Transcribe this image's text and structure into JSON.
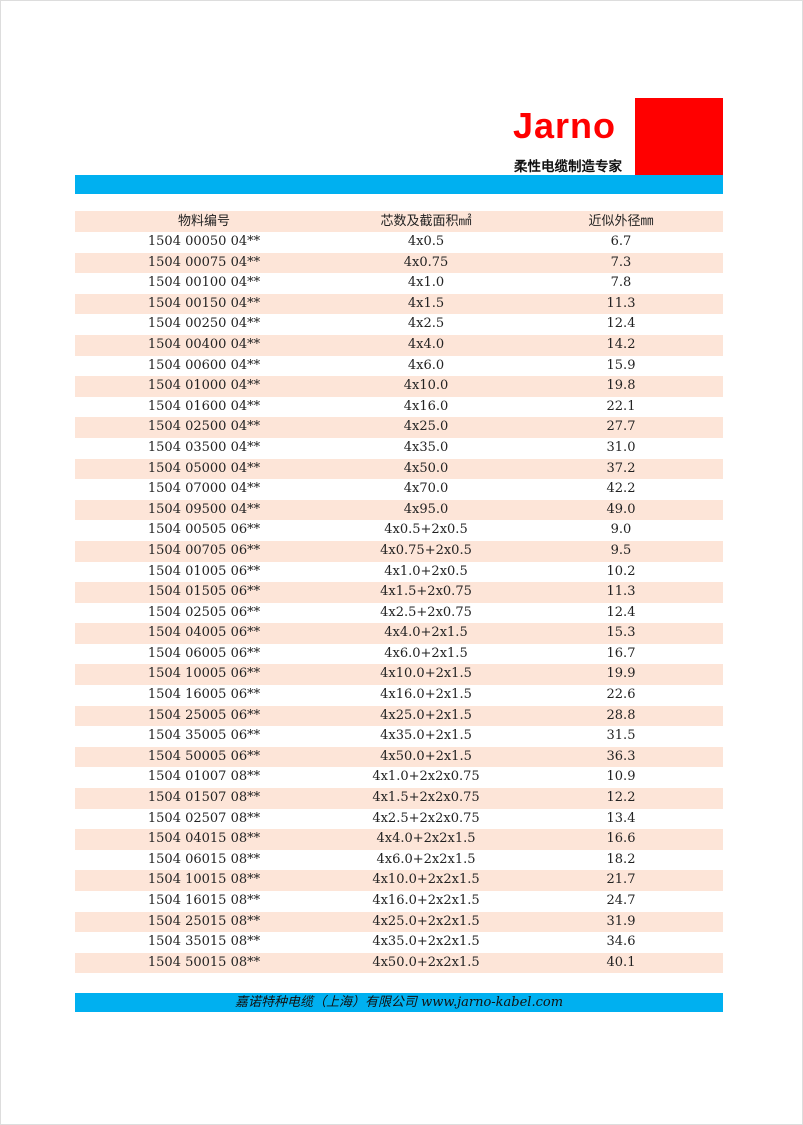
{
  "header": {
    "brand": "Jarno",
    "slogan": "柔性电缆制造专家",
    "colors": {
      "brand": "#ff0000",
      "bar": "#00b0f0",
      "row_shade": "#fde5d8"
    }
  },
  "table": {
    "columns": [
      "物料编号",
      "芯数及截面积㎟",
      "近似外径㎜"
    ],
    "rows": [
      [
        "1504 00050 04**",
        "4x0.5",
        "6.7"
      ],
      [
        "1504 00075 04**",
        "4x0.75",
        "7.3"
      ],
      [
        "1504 00100 04**",
        "4x1.0",
        "7.8"
      ],
      [
        "1504 00150 04**",
        "4x1.5",
        "11.3"
      ],
      [
        "1504 00250 04**",
        "4x2.5",
        "12.4"
      ],
      [
        "1504 00400 04**",
        "4x4.0",
        "14.2"
      ],
      [
        "1504 00600 04**",
        "4x6.0",
        "15.9"
      ],
      [
        "1504 01000 04**",
        "4x10.0",
        "19.8"
      ],
      [
        "1504 01600 04**",
        "4x16.0",
        "22.1"
      ],
      [
        "1504 02500 04**",
        "4x25.0",
        "27.7"
      ],
      [
        "1504 03500 04**",
        "4x35.0",
        "31.0"
      ],
      [
        "1504 05000 04**",
        "4x50.0",
        "37.2"
      ],
      [
        "1504 07000 04**",
        "4x70.0",
        "42.2"
      ],
      [
        "1504 09500 04**",
        "4x95.0",
        "49.0"
      ],
      [
        "1504 00505 06**",
        "4x0.5+2x0.5",
        "9.0"
      ],
      [
        "1504 00705 06**",
        "4x0.75+2x0.5",
        "9.5"
      ],
      [
        "1504 01005 06**",
        "4x1.0+2x0.5",
        "10.2"
      ],
      [
        "1504 01505 06**",
        "4x1.5+2x0.75",
        "11.3"
      ],
      [
        "1504 02505 06**",
        "4x2.5+2x0.75",
        "12.4"
      ],
      [
        "1504 04005 06**",
        "4x4.0+2x1.5",
        "15.3"
      ],
      [
        "1504 06005 06**",
        "4x6.0+2x1.5",
        "16.7"
      ],
      [
        "1504 10005 06**",
        "4x10.0+2x1.5",
        "19.9"
      ],
      [
        "1504 16005 06**",
        "4x16.0+2x1.5",
        "22.6"
      ],
      [
        "1504 25005 06**",
        "4x25.0+2x1.5",
        "28.8"
      ],
      [
        "1504 35005 06**",
        "4x35.0+2x1.5",
        "31.5"
      ],
      [
        "1504 50005 06**",
        "4x50.0+2x1.5",
        "36.3"
      ],
      [
        "1504 01007 08**",
        "4x1.0+2x2x0.75",
        "10.9"
      ],
      [
        "1504 01507 08**",
        "4x1.5+2x2x0.75",
        "12.2"
      ],
      [
        "1504 02507 08**",
        "4x2.5+2x2x0.75",
        "13.4"
      ],
      [
        "1504 04015 08**",
        "4x4.0+2x2x1.5",
        "16.6"
      ],
      [
        "1504 06015 08**",
        "4x6.0+2x2x1.5",
        "18.2"
      ],
      [
        "1504 10015 08**",
        "4x10.0+2x2x1.5",
        "21.7"
      ],
      [
        "1504 16015 08**",
        "4x16.0+2x2x1.5",
        "24.7"
      ],
      [
        "1504 25015 08**",
        "4x25.0+2x2x1.5",
        "31.9"
      ],
      [
        "1504 35015 08**",
        "4x35.0+2x2x1.5",
        "34.6"
      ],
      [
        "1504 50015 08**",
        "4x50.0+2x2x1.5",
        "40.1"
      ]
    ]
  },
  "footer": {
    "text": "嘉诺特种电缆（上海）有限公司 www.jarno-kabel.com"
  }
}
